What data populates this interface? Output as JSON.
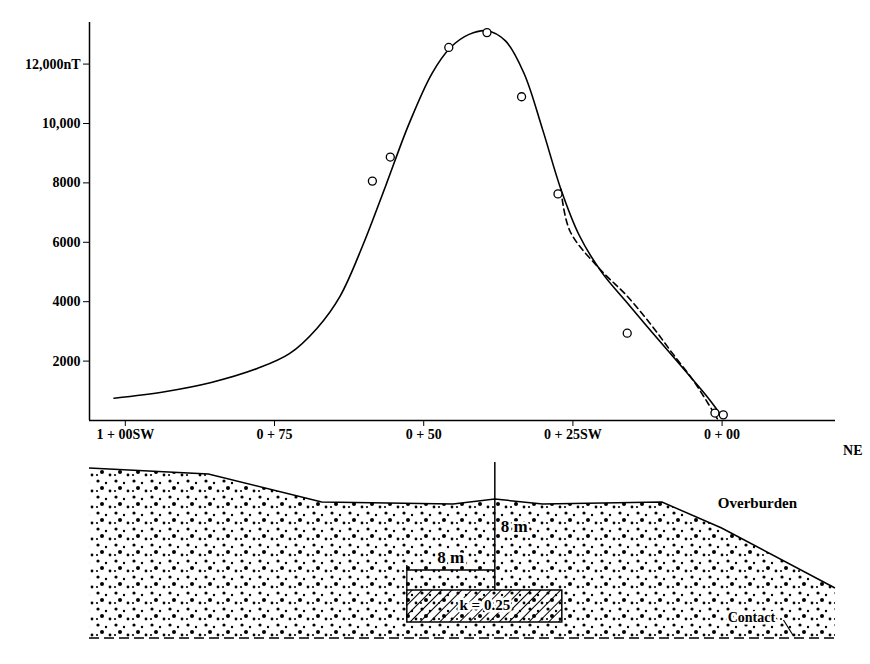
{
  "chart_data": {
    "type": "line",
    "x_label": "NE",
    "xlim": [
      106,
      -19
    ],
    "xticks": [
      {
        "value": 100,
        "label": "1 + 00SW"
      },
      {
        "value": 75,
        "label": "0 + 75"
      },
      {
        "value": 50,
        "label": "0 + 50"
      },
      {
        "value": 25,
        "label": "0 + 25SW"
      },
      {
        "value": 0,
        "label": "0 + 00"
      }
    ],
    "ylim": [
      0,
      13400
    ],
    "yticks": [
      2000,
      4000,
      6000,
      8000,
      {
        "value": 10000,
        "label": "10,000"
      },
      {
        "value": 12000,
        "label": "12,000nT"
      }
    ],
    "grid": false,
    "series": [
      {
        "type": "line",
        "line_style": "solid",
        "color": "#000000",
        "x": [
          101.9,
          93.4,
          85.6,
          77.9,
          72.5,
          67.9,
          64.0,
          60.2,
          56.3,
          52.5,
          48.6,
          45.5,
          42.4,
          39.4,
          36.3,
          33.2,
          30.1,
          27.0,
          23.9,
          20.1,
          16.2,
          11.6,
          6.9,
          2.3,
          0
        ],
        "values": [
          750,
          970,
          1280,
          1750,
          2250,
          3100,
          4190,
          5900,
          7940,
          9970,
          11690,
          12560,
          13000,
          13120,
          12780,
          11690,
          9810,
          7780,
          6220,
          4970,
          4030,
          2940,
          1840,
          750,
          125
        ]
      },
      {
        "type": "line",
        "line_style": "dashed",
        "color": "#000000",
        "x": [
          27.0,
          25.5,
          20.5,
          16.2,
          12.0,
          8.5,
          4.5,
          0.8
        ],
        "values": [
          7780,
          6380,
          5100,
          4250,
          3250,
          2310,
          1250,
          60
        ]
      },
      {
        "type": "scatter",
        "marker": "open circle",
        "color": "#000000",
        "x": [
          58.6,
          55.6,
          45.8,
          39.4,
          33.6,
          27.5,
          15.9,
          1.2,
          -0.2
        ],
        "values": [
          8060,
          8870,
          12560,
          13060,
          10900,
          7630,
          2940,
          250,
          190
        ]
      }
    ],
    "cross_section": {
      "layer": "Overburden",
      "depth": "8 m",
      "half_width": "8 m",
      "body": "k = 0.25",
      "contact": "Contact"
    }
  }
}
